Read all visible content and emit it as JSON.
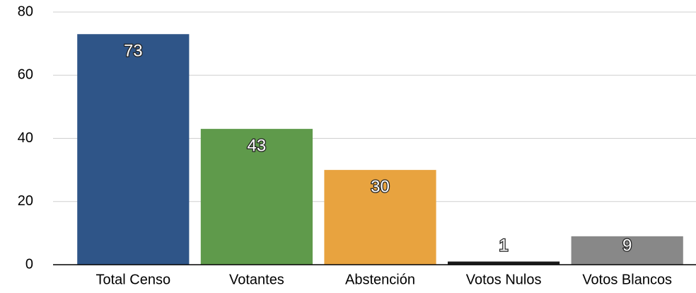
{
  "chart_data": {
    "type": "bar",
    "categories": [
      "Total Censo",
      "Votantes",
      "Abstención",
      "Votos Nulos",
      "Votos Blancos"
    ],
    "values": [
      73,
      43,
      30,
      1,
      9
    ],
    "colors": [
      "#2f5588",
      "#5f9a4b",
      "#e8a33f",
      "#1a1a1a",
      "#888888"
    ],
    "ylim": [
      0,
      80
    ],
    "yticks": [
      0,
      20,
      40,
      60,
      80
    ],
    "grid": true
  }
}
